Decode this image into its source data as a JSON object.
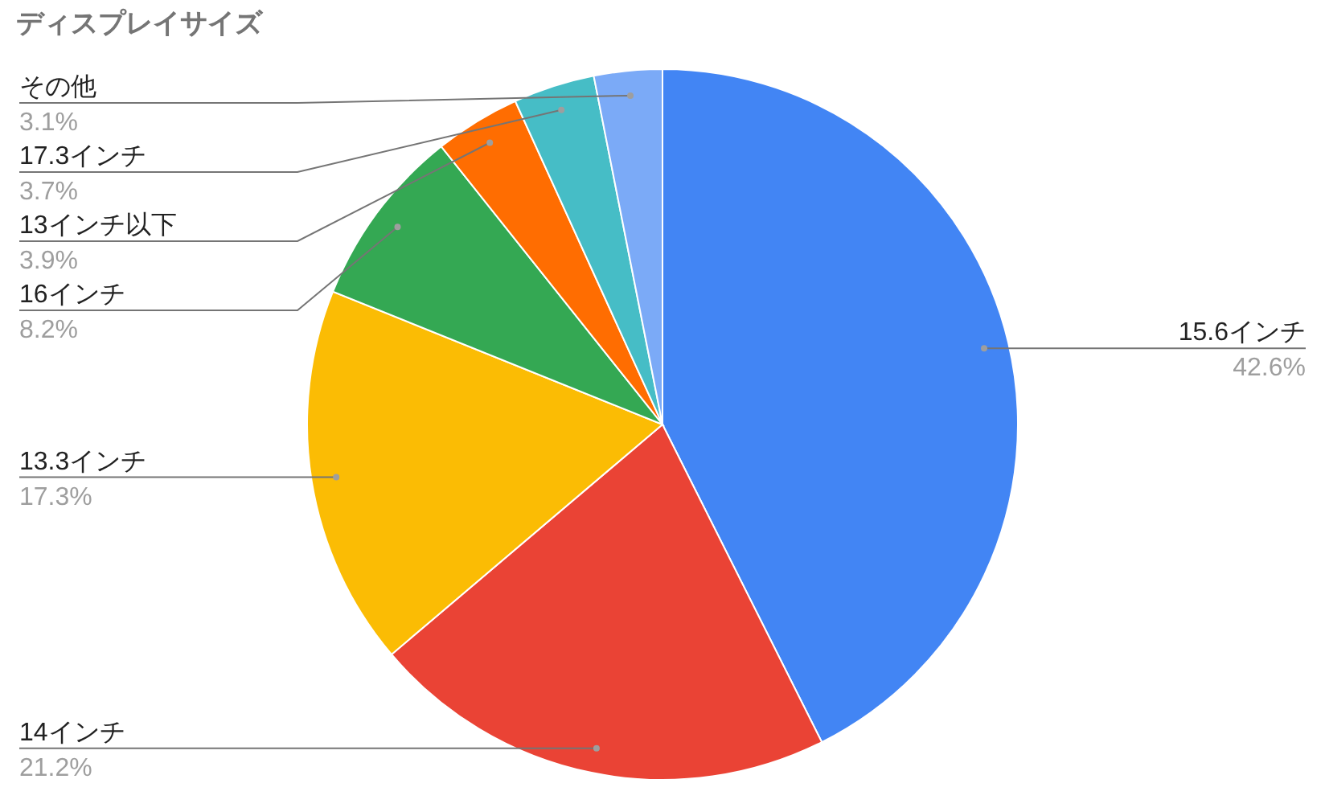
{
  "chart_data": {
    "type": "pie",
    "title": "ディスプレイサイズ",
    "categories": [
      "15.6インチ",
      "14インチ",
      "13.3インチ",
      "16インチ",
      "13インチ以下",
      "17.3インチ",
      "その他"
    ],
    "values": [
      42.6,
      21.2,
      17.3,
      8.2,
      3.9,
      3.7,
      3.1
    ],
    "colors": [
      "#4285f4",
      "#ea4335",
      "#fbbc04",
      "#34a853",
      "#ff6d01",
      "#46bdc6",
      "#7baaf7"
    ],
    "value_labels": [
      "42.6%",
      "21.2%",
      "17.3%",
      "8.2%",
      "3.9%",
      "3.7%",
      "3.1%"
    ]
  }
}
